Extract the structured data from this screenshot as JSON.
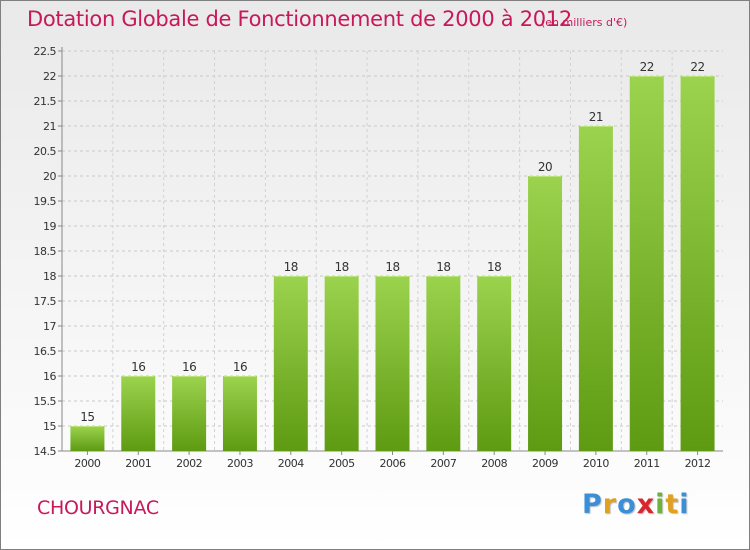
{
  "header": {
    "title": "Dotation Globale de Fonctionnement de 2000 à 2012",
    "unit": "(en milliers d'€)"
  },
  "footer": {
    "commune": "CHOURGNAC",
    "logo": "Proxiti"
  },
  "colors": {
    "title": "#c8185a",
    "bar_top": "#9cd34e",
    "bar_bottom": "#5e9a12"
  },
  "chart_data": {
    "type": "bar",
    "categories": [
      "2000",
      "2001",
      "2002",
      "2003",
      "2004",
      "2005",
      "2006",
      "2007",
      "2008",
      "2009",
      "2010",
      "2011",
      "2012"
    ],
    "values": [
      15,
      16,
      16,
      16,
      18,
      18,
      18,
      18,
      18,
      20,
      21,
      22,
      22
    ],
    "data_labels": [
      "15",
      "16",
      "16",
      "16",
      "18",
      "18",
      "18",
      "18",
      "18",
      "20",
      "21",
      "22",
      "22"
    ],
    "ylim": [
      14.5,
      22.5
    ],
    "yticks": [
      14.5,
      15,
      15.5,
      16,
      16.5,
      17,
      17.5,
      18,
      18.5,
      19,
      19.5,
      20,
      20.5,
      21,
      21.5,
      22,
      22.5
    ],
    "ytick_labels": [
      "14.5",
      "15",
      "15.5",
      "16",
      "16.5",
      "17",
      "17.5",
      "18",
      "18.5",
      "19",
      "19.5",
      "20",
      "20.5",
      "21",
      "21.5",
      "22",
      "22.5"
    ],
    "grid": true
  }
}
